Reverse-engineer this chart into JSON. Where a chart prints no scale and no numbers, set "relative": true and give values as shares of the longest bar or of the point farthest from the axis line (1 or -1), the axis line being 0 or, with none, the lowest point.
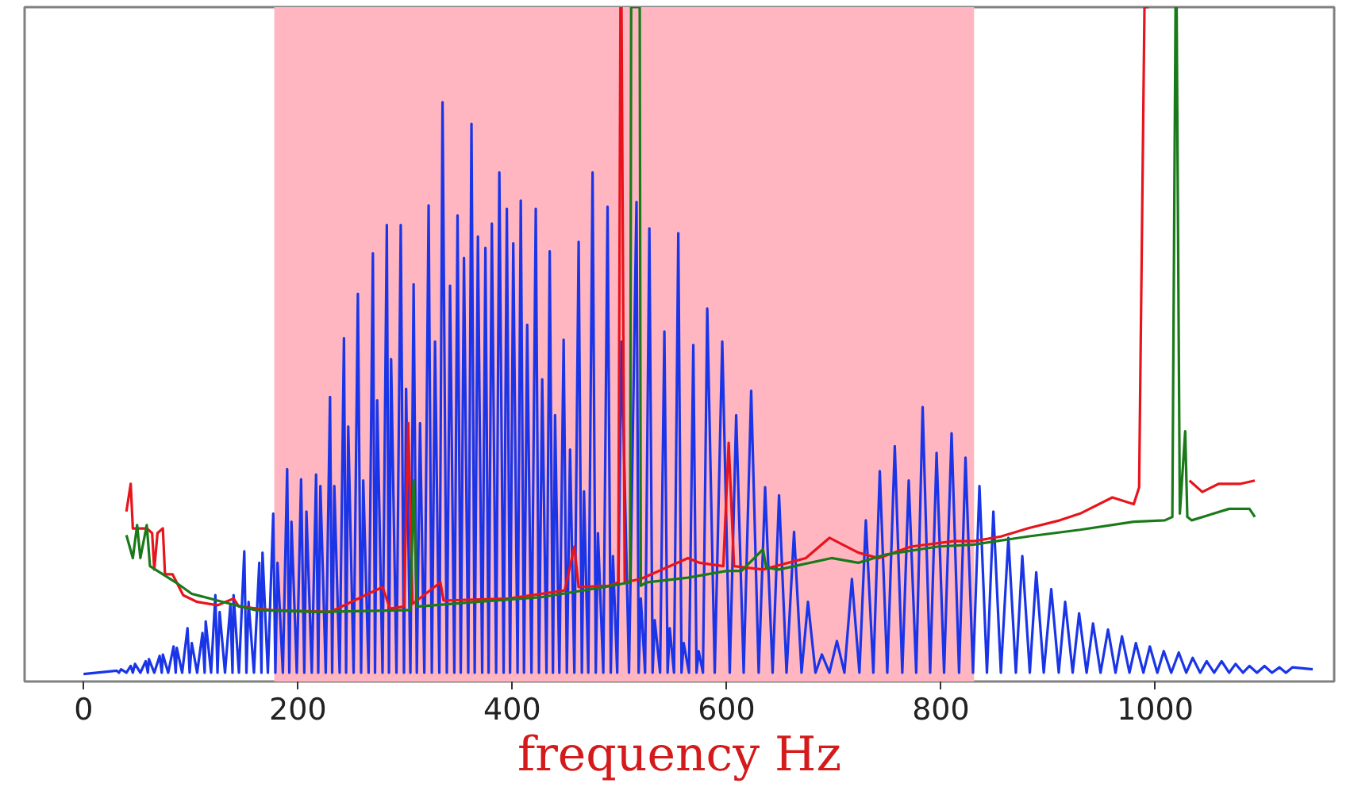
{
  "chart_data": {
    "type": "line",
    "xlabel": "frequency Hz",
    "relative": true,
    "tick_labels": "x",
    "xlim": [
      -55,
      1167
    ],
    "xticks": [
      0,
      200,
      400,
      600,
      800,
      1000
    ],
    "bands": [
      {
        "axis": "x",
        "from": 178,
        "to": 831,
        "color": "#ffb6c1"
      }
    ],
    "series": [
      {
        "color": "#1a35e8",
        "x": [
          0,
          31,
          33,
          35,
          40,
          44,
          46,
          48,
          53,
          58,
          60,
          61,
          66,
          71,
          73,
          74,
          79,
          84,
          86,
          87,
          92,
          97,
          99,
          101,
          106,
          111,
          113,
          114,
          119,
          123,
          125,
          127,
          132,
          137,
          139,
          140,
          145,
          150,
          152,
          154,
          159,
          164,
          166,
          167,
          172,
          177,
          179,
          181,
          186,
          190,
          192,
          194,
          199,
          203,
          206,
          208,
          213,
          217,
          219,
          221,
          226,
          230,
          232,
          234,
          239,
          243,
          245,
          247,
          252,
          256,
          259,
          261,
          266,
          270,
          272,
          274,
          279,
          283,
          285,
          287,
          292,
          296,
          299,
          301,
          305,
          308,
          311,
          314,
          318,
          322,
          325,
          328,
          332,
          335,
          339,
          342,
          346,
          349,
          352,
          355,
          359,
          362,
          365,
          368,
          372,
          375,
          378,
          381,
          385,
          388,
          392,
          395,
          398,
          401,
          405,
          408,
          411,
          414,
          418,
          422,
          425,
          428,
          432,
          435,
          438,
          440,
          444,
          448,
          451,
          454,
          458,
          462,
          465,
          467,
          471,
          475,
          478,
          480,
          485,
          489,
          492,
          494,
          498,
          502,
          509,
          516,
          518,
          520,
          524,
          528,
          531,
          533,
          538,
          542,
          545,
          547,
          551,
          555,
          558,
          560,
          565,
          569,
          572,
          574,
          578,
          582,
          589,
          596,
          603,
          609,
          616,
          623,
          630,
          636,
          643,
          649,
          656,
          663,
          670,
          676,
          683,
          689,
          696,
          703,
          710,
          717,
          724,
          730,
          737,
          743,
          750,
          757,
          764,
          770,
          777,
          783,
          790,
          796,
          803,
          810,
          817,
          823,
          830,
          836,
          843,
          849,
          856,
          863,
          870,
          876,
          883,
          889,
          896,
          903,
          910,
          916,
          923,
          929,
          936,
          942,
          949,
          956,
          963,
          969,
          976,
          982,
          989,
          995,
          1002,
          1008,
          1015,
          1022,
          1029,
          1035,
          1042,
          1048,
          1055,
          1062,
          1069,
          1075,
          1082,
          1088,
          1095,
          1102,
          1109,
          1116,
          1122,
          1128,
          1147
        ],
        "values": [
          0.011,
          0.016,
          0.013,
          0.018,
          0.013,
          0.023,
          0.013,
          0.026,
          0.013,
          0.03,
          0.013,
          0.033,
          0.013,
          0.038,
          0.013,
          0.04,
          0.013,
          0.052,
          0.013,
          0.05,
          0.013,
          0.079,
          0.013,
          0.057,
          0.013,
          0.072,
          0.013,
          0.089,
          0.013,
          0.128,
          0.013,
          0.103,
          0.013,
          0.113,
          0.013,
          0.128,
          0.013,
          0.193,
          0.013,
          0.118,
          0.013,
          0.176,
          0.013,
          0.191,
          0.013,
          0.249,
          0.013,
          0.176,
          0.013,
          0.315,
          0.013,
          0.237,
          0.013,
          0.3,
          0.013,
          0.252,
          0.013,
          0.307,
          0.013,
          0.29,
          0.013,
          0.422,
          0.013,
          0.29,
          0.013,
          0.509,
          0.013,
          0.378,
          0.013,
          0.575,
          0.013,
          0.298,
          0.013,
          0.635,
          0.013,
          0.417,
          0.013,
          0.677,
          0.013,
          0.478,
          0.013,
          0.677,
          0.013,
          0.434,
          0.013,
          0.589,
          0.013,
          0.383,
          0.013,
          0.706,
          0.013,
          0.504,
          0.013,
          0.859,
          0.013,
          0.587,
          0.013,
          0.691,
          0.013,
          0.628,
          0.013,
          0.827,
          0.013,
          0.66,
          0.013,
          0.643,
          0.013,
          0.679,
          0.013,
          0.755,
          0.013,
          0.701,
          0.013,
          0.65,
          0.013,
          0.713,
          0.013,
          0.529,
          0.013,
          0.701,
          0.013,
          0.448,
          0.013,
          0.638,
          0.013,
          0.395,
          0.013,
          0.507,
          0.013,
          0.344,
          0.013,
          0.652,
          0.013,
          0.282,
          0.013,
          0.755,
          0.013,
          0.22,
          0.013,
          0.704,
          0.013,
          0.186,
          0.013,
          0.504,
          0.013,
          0.711,
          0.013,
          0.123,
          0.013,
          0.672,
          0.013,
          0.091,
          0.013,
          0.519,
          0.013,
          0.079,
          0.013,
          0.665,
          0.013,
          0.057,
          0.013,
          0.499,
          0.013,
          0.045,
          0.013,
          0.553,
          0.013,
          0.504,
          0.013,
          0.395,
          0.013,
          0.431,
          0.013,
          0.288,
          0.013,
          0.276,
          0.013,
          0.222,
          0.013,
          0.118,
          0.013,
          0.04,
          0.013,
          0.06,
          0.013,
          0.152,
          0.013,
          0.239,
          0.013,
          0.312,
          0.013,
          0.349,
          0.013,
          0.298,
          0.013,
          0.407,
          0.013,
          0.339,
          0.013,
          0.368,
          0.013,
          0.332,
          0.013,
          0.29,
          0.013,
          0.252,
          0.013,
          0.213,
          0.013,
          0.186,
          0.013,
          0.162,
          0.013,
          0.137,
          0.013,
          0.118,
          0.013,
          0.101,
          0.013,
          0.086,
          0.013,
          0.077,
          0.013,
          0.067,
          0.013,
          0.057,
          0.013,
          0.052,
          0.013,
          0.045,
          0.013,
          0.043,
          0.013,
          0.035,
          0.013,
          0.03,
          0.013,
          0.03,
          0.013,
          0.026,
          0.013,
          0.023,
          0.013,
          0.023,
          0.013,
          0.021,
          0.013,
          0.021,
          0.018
        ]
      },
      {
        "color": "#e8141c",
        "x": [
          40,
          44,
          46,
          59,
          64,
          66,
          69,
          74,
          76,
          83,
          93,
          106,
          125,
          140,
          145,
          175,
          230,
          279,
          286,
          299,
          303,
          307,
          333,
          336,
          397,
          449,
          458,
          462,
          490,
          499,
          501,
          502,
          505,
          520,
          564,
          575,
          597,
          602,
          607,
          634,
          674,
          696,
          723,
          742,
          772,
          812,
          831,
          856,
          881,
          911,
          930,
          960,
          980,
          985,
          990,
          994,
          1010,
          1032,
          1044,
          1059,
          1079,
          1093
        ],
        "values": [
          0.252,
          0.293,
          0.227,
          0.227,
          0.22,
          0.166,
          0.22,
          0.227,
          0.159,
          0.159,
          0.128,
          0.118,
          0.113,
          0.123,
          0.111,
          0.106,
          0.103,
          0.14,
          0.108,
          0.111,
          0.383,
          0.115,
          0.147,
          0.12,
          0.123,
          0.135,
          0.2,
          0.14,
          0.142,
          0.147,
          1.0,
          1.0,
          0.147,
          0.152,
          0.183,
          0.176,
          0.171,
          0.354,
          0.171,
          0.166,
          0.183,
          0.213,
          0.191,
          0.183,
          0.2,
          0.208,
          0.208,
          0.215,
          0.227,
          0.239,
          0.249,
          0.273,
          0.263,
          0.288,
          1.0,
          1.0,
          null,
          0.298,
          0.281,
          0.293,
          0.293,
          0.298
        ]
      },
      {
        "color": "#1a7a1a",
        "x": [
          40,
          46,
          50,
          53,
          59,
          62,
          86,
          101,
          130,
          160,
          219,
          305,
          308,
          311,
          367,
          427,
          486,
          510,
          511,
          519,
          520,
          525,
          564,
          600,
          614,
          634,
          637,
          649,
          698,
          723,
          748,
          797,
          831,
          881,
          930,
          980,
          1009,
          1016,
          1019,
          1020,
          1023,
          1028,
          1030,
          1034,
          1069,
          1088,
          1093
        ],
        "values": [
          0.217,
          0.183,
          0.232,
          0.183,
          0.232,
          0.171,
          0.147,
          0.13,
          0.118,
          0.106,
          0.103,
          0.106,
          0.298,
          0.111,
          0.118,
          0.125,
          0.14,
          0.147,
          1.0,
          1.0,
          0.142,
          0.147,
          0.154,
          0.164,
          0.164,
          0.196,
          0.169,
          0.166,
          0.183,
          0.176,
          0.188,
          0.2,
          0.203,
          0.215,
          0.225,
          0.237,
          0.239,
          0.244,
          1.0,
          1.0,
          0.249,
          0.371,
          0.244,
          0.239,
          0.256,
          0.256,
          0.244
        ]
      }
    ]
  }
}
